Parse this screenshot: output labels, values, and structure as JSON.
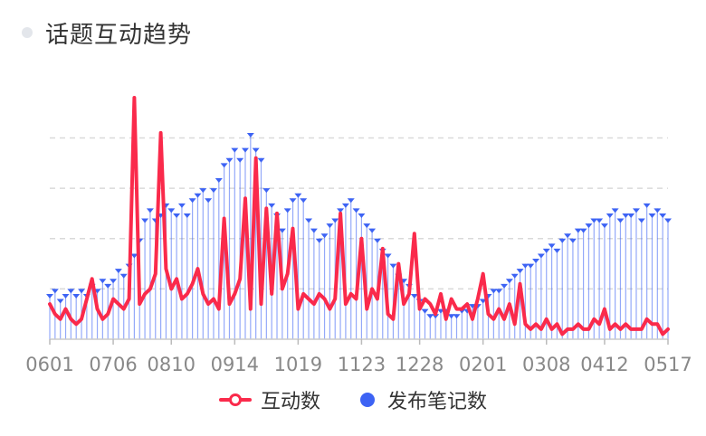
{
  "title": "话题互动趋势",
  "colors": {
    "line": "#fa2a4b",
    "bars": "#3d63f4",
    "grid": "#d9d9d9",
    "axis_text": "#888888",
    "title_dot": "#e3e6eb"
  },
  "legend": {
    "line_label": "互动数",
    "bar_label": "发布笔记数"
  },
  "chart_data": {
    "type": "bar",
    "title": "话题互动趋势",
    "x_tick_labels": [
      "0601",
      "0706",
      "0810",
      "0914",
      "1019",
      "1123",
      "1228",
      "0201",
      "0308",
      "0412",
      "0517"
    ],
    "y_axis_labels_visible": false,
    "y_range": [
      0,
      48
    ],
    "gridlines_at": [
      10,
      20,
      30,
      40
    ],
    "grid": true,
    "legend_position": "bottom",
    "series": [
      {
        "name": "发布笔记数",
        "type": "bar",
        "values": [
          9,
          10,
          8,
          9,
          10,
          9,
          10,
          9,
          11,
          10,
          12,
          11,
          12,
          14,
          13,
          15,
          17,
          20,
          24,
          26,
          24,
          25,
          27,
          26,
          25,
          27,
          25,
          28,
          29,
          30,
          28,
          30,
          32,
          35,
          36,
          38,
          36,
          38,
          41,
          38,
          36,
          30,
          27,
          25,
          22,
          26,
          28,
          29,
          28,
          24,
          22,
          20,
          21,
          23,
          24,
          26,
          27,
          28,
          26,
          25,
          23,
          22,
          20,
          18,
          17,
          15,
          13,
          12,
          11,
          9,
          8,
          6,
          5,
          5,
          6,
          6,
          5,
          5,
          6,
          6,
          7,
          7,
          8,
          9,
          10,
          10,
          11,
          12,
          13,
          14,
          15,
          15,
          16,
          17,
          18,
          19,
          18,
          20,
          21,
          20,
          22,
          22,
          23,
          24,
          24,
          23,
          25,
          26,
          24,
          25,
          25,
          26,
          24,
          27,
          25,
          26,
          25,
          24
        ]
      },
      {
        "name": "互动数",
        "type": "line",
        "values": [
          7,
          5,
          4,
          6,
          4,
          3,
          4,
          8,
          12,
          6,
          4,
          5,
          8,
          7,
          6,
          8,
          48,
          7,
          9,
          10,
          13,
          41,
          14,
          10,
          12,
          8,
          9,
          11,
          14,
          9,
          7,
          8,
          6,
          24,
          7,
          9,
          12,
          28,
          6,
          36,
          7,
          26,
          9,
          25,
          10,
          13,
          22,
          6,
          9,
          8,
          7,
          9,
          8,
          6,
          8,
          25,
          7,
          9,
          8,
          20,
          6,
          10,
          8,
          18,
          5,
          4,
          15,
          7,
          9,
          21,
          6,
          8,
          7,
          5,
          9,
          4,
          8,
          6,
          6,
          7,
          4,
          8,
          13,
          5,
          4,
          6,
          4,
          7,
          3,
          11,
          3,
          2,
          3,
          2,
          4,
          2,
          3,
          1,
          2,
          2,
          3,
          2,
          2,
          4,
          3,
          6,
          2,
          3,
          2,
          3,
          2,
          2,
          2,
          4,
          3,
          3,
          1,
          2
        ]
      }
    ]
  }
}
